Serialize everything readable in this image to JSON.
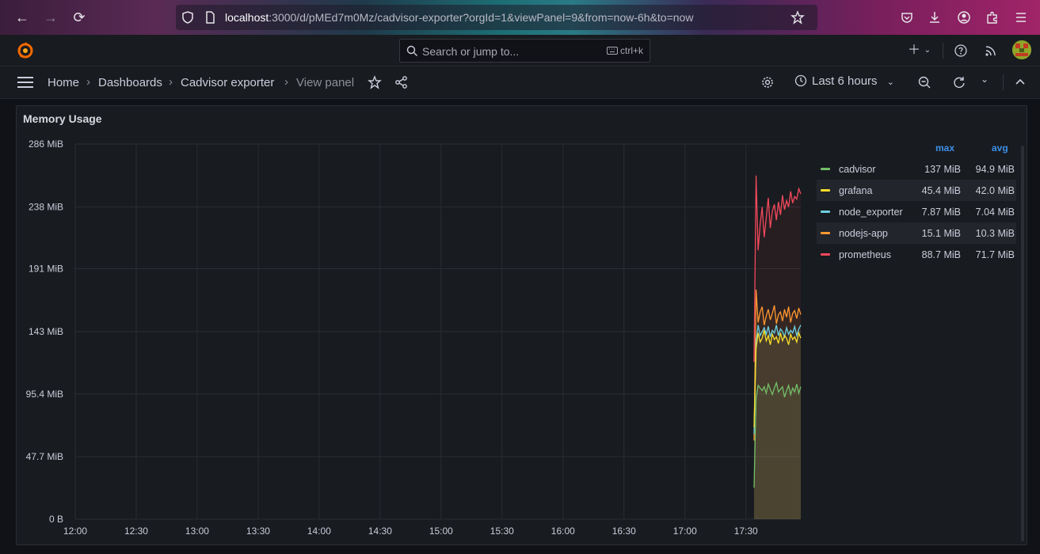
{
  "browser": {
    "url_host": "localhost",
    "url_rest": ":3000/d/pMEd7m0Mz/cadvisor-exporter?orgId=1&viewPanel=9&from=now-6h&to=now"
  },
  "topbar": {
    "search_placeholder": "Search or jump to...",
    "search_shortcut": "ctrl+k"
  },
  "breadcrumb": {
    "items": [
      "Home",
      "Dashboards",
      "Cadvisor exporter",
      "View panel"
    ],
    "separator": "›"
  },
  "toolbar": {
    "time_range": "Last 6 hours"
  },
  "panel": {
    "title": "Memory Usage"
  },
  "legend": {
    "col_max": "max",
    "col_avg": "avg",
    "rows": [
      {
        "name": "cadvisor",
        "max": "137 MiB",
        "avg": "94.9 MiB",
        "color": "#73bf69"
      },
      {
        "name": "grafana",
        "max": "45.4 MiB",
        "avg": "42.0 MiB",
        "color": "#fade2a"
      },
      {
        "name": "node_exporter",
        "max": "7.87 MiB",
        "avg": "7.04 MiB",
        "color": "#6ccfe0"
      },
      {
        "name": "nodejs-app",
        "max": "15.1 MiB",
        "avg": "10.3 MiB",
        "color": "#ff9830"
      },
      {
        "name": "prometheus",
        "max": "88.7 MiB",
        "avg": "71.7 MiB",
        "color": "#f2495c"
      }
    ]
  },
  "chart_data": {
    "type": "area",
    "stacked": true,
    "y_tick_labels": [
      "0 B",
      "47.7 MiB",
      "95.4 MiB",
      "143 MiB",
      "191 MiB",
      "238 MiB",
      "286 MiB"
    ],
    "y_ticks_mib": [
      0,
      47.7,
      95.4,
      143,
      191,
      238,
      286
    ],
    "ylim_mib": [
      0,
      286
    ],
    "x_tick_labels": [
      "12:00",
      "12:30",
      "13:00",
      "13:30",
      "14:00",
      "14:30",
      "15:00",
      "15:30",
      "16:00",
      "16:30",
      "17:00",
      "17:30"
    ],
    "x_ticks_min": [
      0,
      30,
      60,
      90,
      120,
      150,
      180,
      210,
      240,
      270,
      300,
      330
    ],
    "xlim_min": [
      0,
      357
    ],
    "grid": true,
    "legend_placement": "right",
    "x_min": [
      334,
      335,
      336,
      337,
      338,
      339,
      340,
      341,
      342,
      343,
      344,
      345,
      346,
      347,
      348,
      349,
      350,
      351,
      352,
      353,
      354,
      355,
      356,
      357
    ],
    "series": [
      {
        "name": "cadvisor",
        "color": "#73bf69",
        "values": [
          24,
          92,
          102,
          100,
          98,
          101,
          96,
          103,
          99,
          95,
          100,
          104,
          97,
          99,
          101,
          93,
          98,
          102,
          95,
          100,
          97,
          103,
          96,
          101
        ]
      },
      {
        "name": "nodejs-app",
        "color": "#ff9830",
        "values": [
          60,
          175,
          150,
          158,
          162,
          148,
          155,
          160,
          152,
          157,
          163,
          149,
          156,
          158,
          151,
          160,
          154,
          162,
          150,
          157,
          159,
          153,
          161,
          156
        ]
      },
      {
        "name": "node_exporter",
        "color": "#6ccfe0",
        "values": [
          65,
          135,
          148,
          140,
          143,
          146,
          141,
          147,
          139,
          144,
          142,
          148,
          140,
          145,
          143,
          139,
          146,
          141,
          144,
          142,
          147,
          140,
          145,
          148
        ]
      },
      {
        "name": "grafana",
        "color": "#fade2a",
        "values": [
          70,
          130,
          142,
          135,
          138,
          144,
          136,
          140,
          133,
          141,
          137,
          139,
          134,
          142,
          136,
          140,
          138,
          133,
          141,
          137,
          139,
          135,
          142,
          138
        ]
      },
      {
        "name": "prometheus",
        "color": "#f2495c",
        "values": [
          120,
          262,
          205,
          225,
          238,
          215,
          230,
          245,
          222,
          235,
          240,
          228,
          242,
          232,
          247,
          236,
          243,
          238,
          250,
          241,
          246,
          244,
          252,
          248
        ]
      }
    ]
  }
}
